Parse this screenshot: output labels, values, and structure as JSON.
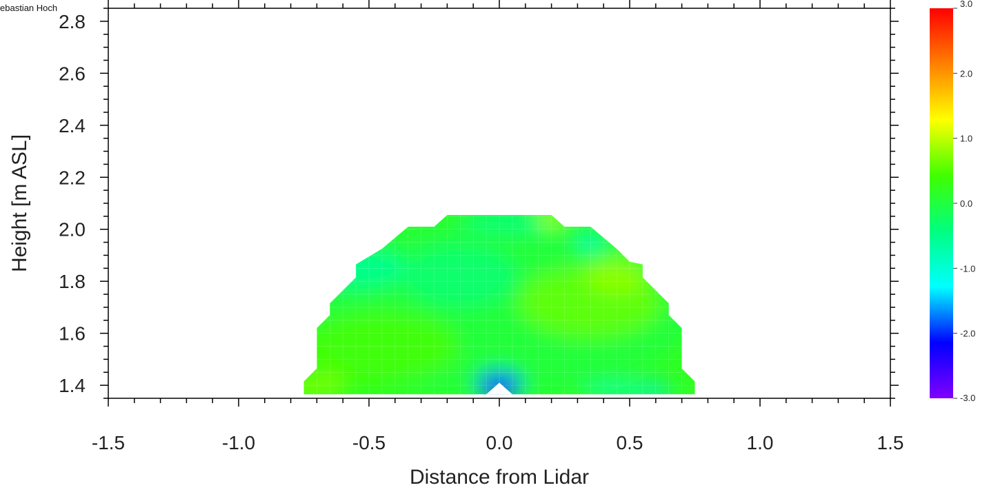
{
  "credit": "ebastian Hoch",
  "chart_data": {
    "type": "heatmap",
    "xlabel": "Distance from Lidar",
    "ylabel": "Height [m ASL]",
    "xlim": [
      -1.5,
      1.5
    ],
    "ylim": [
      1.35,
      2.85
    ],
    "x_ticks": [
      "-1.5",
      "-1.0",
      "-0.5",
      "0.0",
      "0.5",
      "1.0",
      "1.5"
    ],
    "x_tick_values": [
      -1.5,
      -1.0,
      -0.5,
      0.0,
      0.5,
      1.0,
      1.5
    ],
    "y_ticks": [
      "1.4",
      "1.6",
      "1.8",
      "2.0",
      "2.2",
      "2.4",
      "2.6",
      "2.8"
    ],
    "y_tick_values": [
      1.4,
      1.6,
      1.8,
      2.0,
      2.2,
      2.4,
      2.6,
      2.8
    ],
    "colorbar": {
      "min": -3.0,
      "max": 3.0,
      "tick_values": [
        3.0,
        2.0,
        1.0,
        0.0,
        -1.0,
        -2.0,
        -3.0
      ],
      "tick_labels": [
        "3.0",
        "2.0",
        "1.0",
        "0.0",
        "-1.0",
        "-2.0",
        "-3.0"
      ],
      "colormap": [
        "#8000ff",
        "#0000ff",
        "#00ffff",
        "#00ff80",
        "#40ff00",
        "#ffff00",
        "#ff8000",
        "#ff0000"
      ]
    },
    "field_outline": [
      [
        -0.75,
        1.365
      ],
      [
        0.75,
        1.365
      ],
      [
        0.75,
        1.415
      ],
      [
        0.7,
        1.465
      ],
      [
        0.7,
        1.62
      ],
      [
        0.65,
        1.67
      ],
      [
        0.65,
        1.715
      ],
      [
        0.55,
        1.815
      ],
      [
        0.55,
        1.865
      ],
      [
        0.5,
        1.875
      ],
      [
        0.45,
        1.925
      ],
      [
        0.35,
        2.01
      ],
      [
        0.25,
        2.01
      ],
      [
        0.2,
        2.055
      ],
      [
        -0.2,
        2.055
      ],
      [
        -0.25,
        2.01
      ],
      [
        -0.35,
        2.01
      ],
      [
        -0.45,
        1.925
      ],
      [
        -0.55,
        1.865
      ],
      [
        -0.55,
        1.815
      ],
      [
        -0.65,
        1.715
      ],
      [
        -0.65,
        1.67
      ],
      [
        -0.7,
        1.62
      ],
      [
        -0.7,
        1.465
      ],
      [
        -0.75,
        1.415
      ]
    ],
    "field_blobs": [
      {
        "x": 0.0,
        "y": 1.7,
        "rx": 0.75,
        "ry": 0.35,
        "value": 0.0
      },
      {
        "x": -0.45,
        "y": 1.55,
        "rx": 0.3,
        "ry": 0.14,
        "value": 0.45
      },
      {
        "x": -0.55,
        "y": 1.85,
        "rx": 0.2,
        "ry": 0.08,
        "value": -0.6
      },
      {
        "x": -0.15,
        "y": 1.82,
        "rx": 0.22,
        "ry": 0.12,
        "value": -0.35
      },
      {
        "x": 0.35,
        "y": 1.72,
        "rx": 0.28,
        "ry": 0.14,
        "value": 0.6
      },
      {
        "x": 0.45,
        "y": 1.82,
        "rx": 0.12,
        "ry": 0.07,
        "value": 0.8
      },
      {
        "x": -0.7,
        "y": 1.4,
        "rx": 0.12,
        "ry": 0.05,
        "value": 0.7
      },
      {
        "x": 0.05,
        "y": 2.03,
        "rx": 0.2,
        "ry": 0.04,
        "value": -0.5
      },
      {
        "x": 0.2,
        "y": 2.04,
        "rx": 0.05,
        "ry": 0.03,
        "value": 1.0
      },
      {
        "x": 0.35,
        "y": 1.95,
        "rx": 0.06,
        "ry": 0.04,
        "value": -0.8
      },
      {
        "x": 0.0,
        "y": 1.4,
        "rx": 0.09,
        "ry": 0.06,
        "value": -1.7
      },
      {
        "x": 0.0,
        "y": 1.38,
        "rx": 0.05,
        "ry": 0.03,
        "value": -2.4
      },
      {
        "x": 0.5,
        "y": 1.38,
        "rx": 0.18,
        "ry": 0.025,
        "value": -0.9
      },
      {
        "x": 0.6,
        "y": 1.38,
        "rx": 0.05,
        "ry": 0.02,
        "value": -1.4
      }
    ],
    "missing_region": [
      [
        -0.05,
        1.365
      ],
      [
        0.05,
        1.365
      ],
      [
        0.0,
        1.41
      ]
    ]
  }
}
